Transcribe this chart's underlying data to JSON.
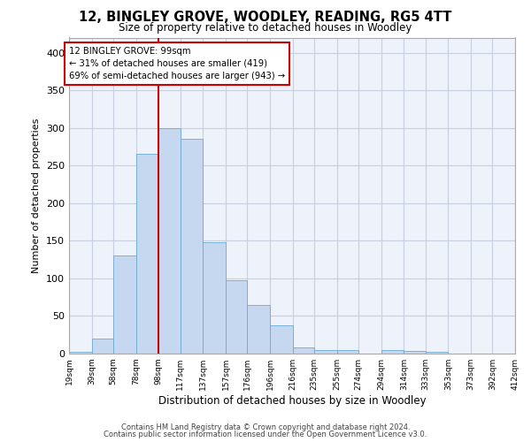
{
  "title": "12, BINGLEY GROVE, WOODLEY, READING, RG5 4TT",
  "subtitle": "Size of property relative to detached houses in Woodley",
  "xlabel": "Distribution of detached houses by size in Woodley",
  "ylabel": "Number of detached properties",
  "bar_color": "#c5d8f0",
  "bar_edge_color": "#6aaad4",
  "bg_color": "#eef2fa",
  "grid_color": "#c8d0e0",
  "vline_x": 98,
  "vline_color": "#cc0000",
  "annotation_text": "12 BINGLEY GROVE: 99sqm\n← 31% of detached houses are smaller (419)\n69% of semi-detached houses are larger (943) →",
  "annotation_box_color": "#cc0000",
  "footnote1": "Contains HM Land Registry data © Crown copyright and database right 2024.",
  "footnote2": "Contains public sector information licensed under the Open Government Licence v3.0.",
  "bin_edges": [
    19,
    39,
    58,
    78,
    98,
    117,
    137,
    157,
    176,
    196,
    216,
    235,
    255,
    274,
    294,
    314,
    333,
    353,
    373,
    392,
    412
  ],
  "bar_heights": [
    2,
    20,
    130,
    265,
    300,
    285,
    148,
    98,
    65,
    38,
    8,
    5,
    5,
    0,
    5,
    3,
    2,
    0,
    0,
    0
  ],
  "ylim": [
    0,
    420
  ],
  "yticks": [
    0,
    50,
    100,
    150,
    200,
    250,
    300,
    350,
    400
  ]
}
